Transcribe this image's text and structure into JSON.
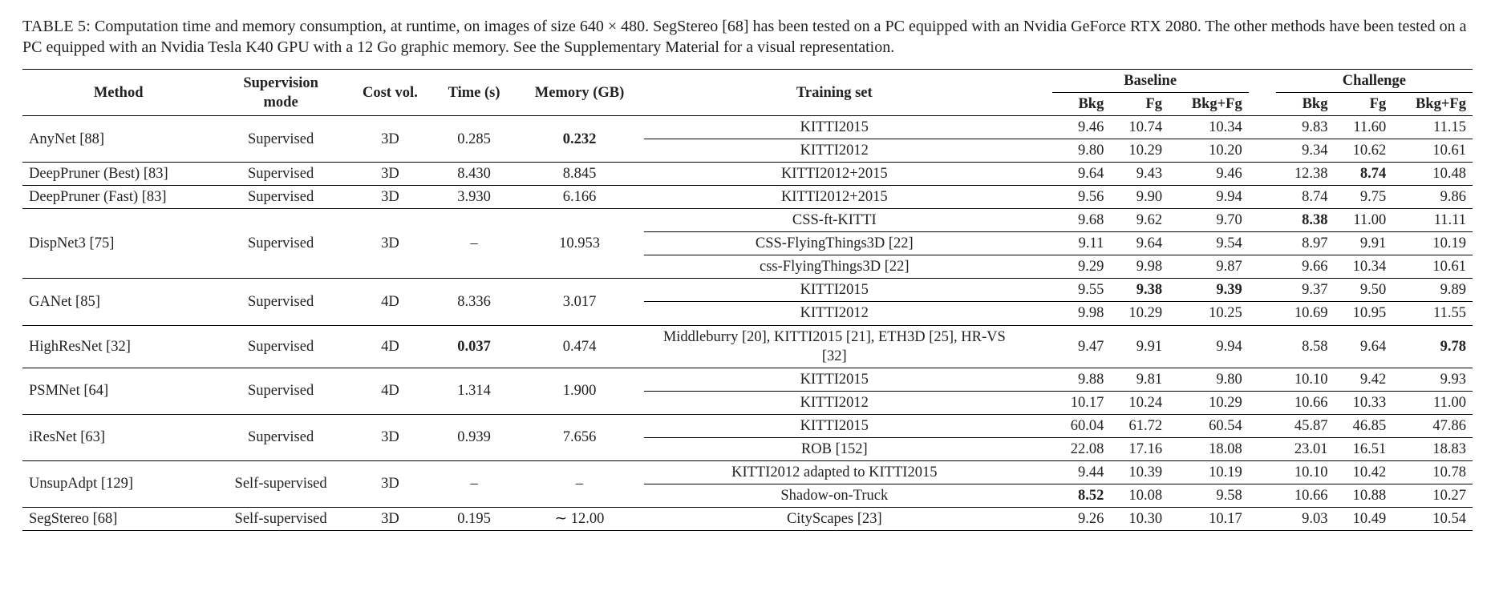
{
  "caption": {
    "label": "TABLE 5:",
    "text": "Computation time and memory consumption, at runtime, on images of size 640 × 480. SegStereo [68] has been tested on a PC equipped with an Nvidia GeForce RTX 2080. The other methods have been tested on a PC equipped with an Nvidia Tesla K40 GPU with a 12 Go graphic memory. See the Supplementary Material for a visual representation."
  },
  "table": {
    "columns": {
      "method": "Method",
      "supervision": "Supervision mode",
      "costvol": "Cost vol.",
      "time": "Time (s)",
      "memory": "Memory (GB)",
      "training": "Training set",
      "baseline_group": "Baseline",
      "challenge_group": "Challenge",
      "bkg": "Bkg",
      "fg": "Fg",
      "bkgfg": "Bkg+Fg"
    },
    "groups": [
      {
        "method": "AnyNet [88]",
        "supervision": "Supervised",
        "costvol": "3D",
        "time": "0.285",
        "memory": "0.232",
        "memory_bold": true,
        "rows": [
          {
            "training": "KITTI2015",
            "b": [
              "9.46",
              "10.74",
              "10.34"
            ],
            "c": [
              "9.83",
              "11.60",
              "11.15"
            ]
          },
          {
            "training": "KITTI2012",
            "b": [
              "9.80",
              "10.29",
              "10.20"
            ],
            "c": [
              "9.34",
              "10.62",
              "10.61"
            ]
          }
        ]
      },
      {
        "method": "DeepPruner (Best) [83]",
        "supervision": "Supervised",
        "costvol": "3D",
        "time": "8.430",
        "memory": "8.845",
        "rows": [
          {
            "training": "KITTI2012+2015",
            "b": [
              "9.64",
              "9.43",
              "9.46"
            ],
            "c": [
              "12.38",
              "8.74",
              "10.48"
            ],
            "c_bold": [
              false,
              true,
              false
            ]
          }
        ]
      },
      {
        "method": "DeepPruner (Fast) [83]",
        "supervision": "Supervised",
        "costvol": "3D",
        "time": "3.930",
        "memory": "6.166",
        "rows": [
          {
            "training": "KITTI2012+2015",
            "b": [
              "9.56",
              "9.90",
              "9.94"
            ],
            "c": [
              "8.74",
              "9.75",
              "9.86"
            ]
          }
        ]
      },
      {
        "method": "DispNet3 [75]",
        "supervision": "Supervised",
        "costvol": "3D",
        "time": "–",
        "memory": "10.953",
        "rows": [
          {
            "training": "CSS-ft-KITTI",
            "b": [
              "9.68",
              "9.62",
              "9.70"
            ],
            "c": [
              "8.38",
              "11.00",
              "11.11"
            ],
            "c_bold": [
              true,
              false,
              false
            ]
          },
          {
            "training": "CSS-FlyingThings3D [22]",
            "b": [
              "9.11",
              "9.64",
              "9.54"
            ],
            "c": [
              "8.97",
              "9.91",
              "10.19"
            ]
          },
          {
            "training": "css-FlyingThings3D [22]",
            "b": [
              "9.29",
              "9.98",
              "9.87"
            ],
            "c": [
              "9.66",
              "10.34",
              "10.61"
            ]
          }
        ]
      },
      {
        "method": "GANet [85]",
        "supervision": "Supervised",
        "costvol": "4D",
        "time": "8.336",
        "memory": "3.017",
        "rows": [
          {
            "training": "KITTI2015",
            "b": [
              "9.55",
              "9.38",
              "9.39"
            ],
            "b_bold": [
              false,
              true,
              true
            ],
            "c": [
              "9.37",
              "9.50",
              "9.89"
            ]
          },
          {
            "training": "KITTI2012",
            "b": [
              "9.98",
              "10.29",
              "10.25"
            ],
            "c": [
              "10.69",
              "10.95",
              "11.55"
            ]
          }
        ]
      },
      {
        "method": "HighResNet [32]",
        "supervision": "Supervised",
        "costvol": "4D",
        "time": "0.037",
        "time_bold": true,
        "memory": "0.474",
        "rows": [
          {
            "training": "Middleburry [20], KITTI2015 [21], ETH3D [25], HR-VS [32]",
            "wrap": true,
            "b": [
              "9.47",
              "9.91",
              "9.94"
            ],
            "c": [
              "8.58",
              "9.64",
              "9.78"
            ],
            "c_bold": [
              false,
              false,
              true
            ]
          }
        ]
      },
      {
        "method": "PSMNet [64]",
        "supervision": "Supervised",
        "costvol": "4D",
        "time": "1.314",
        "memory": "1.900",
        "rows": [
          {
            "training": "KITTI2015",
            "b": [
              "9.88",
              "9.81",
              "9.80"
            ],
            "c": [
              "10.10",
              "9.42",
              "9.93"
            ]
          },
          {
            "training": "KITTI2012",
            "b": [
              "10.17",
              "10.24",
              "10.29"
            ],
            "c": [
              "10.66",
              "10.33",
              "11.00"
            ]
          }
        ]
      },
      {
        "method": "iResNet [63]",
        "supervision": "Supervised",
        "costvol": "3D",
        "time": "0.939",
        "memory": "7.656",
        "rows": [
          {
            "training": "KITTI2015",
            "b": [
              "60.04",
              "61.72",
              "60.54"
            ],
            "c": [
              "45.87",
              "46.85",
              "47.86"
            ]
          },
          {
            "training": "ROB [152]",
            "b": [
              "22.08",
              "17.16",
              "18.08"
            ],
            "c": [
              "23.01",
              "16.51",
              "18.83"
            ]
          }
        ]
      },
      {
        "method": "UnsupAdpt [129]",
        "supervision": "Self-supervised",
        "costvol": "3D",
        "time": "–",
        "memory": "–",
        "rows": [
          {
            "training": "KITTI2012 adapted to KITTI2015",
            "b": [
              "9.44",
              "10.39",
              "10.19"
            ],
            "c": [
              "10.10",
              "10.42",
              "10.78"
            ]
          },
          {
            "training": "Shadow-on-Truck",
            "b": [
              "8.52",
              "10.08",
              "9.58"
            ],
            "b_bold": [
              true,
              false,
              false
            ],
            "c": [
              "10.66",
              "10.88",
              "10.27"
            ]
          }
        ]
      },
      {
        "method": "SegStereo [68]",
        "supervision": "Self-supervised",
        "costvol": "3D",
        "time": "0.195",
        "memory": "∼ 12.00",
        "rows": [
          {
            "training": "CityScapes [23]",
            "b": [
              "9.26",
              "10.30",
              "10.17"
            ],
            "c": [
              "9.03",
              "10.49",
              "10.54"
            ]
          }
        ]
      }
    ]
  }
}
